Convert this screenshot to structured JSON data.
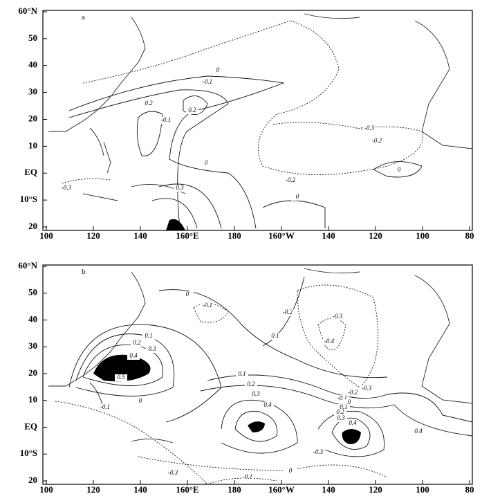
{
  "x_axis_labels": [
    "100",
    "120",
    "140",
    "160°E",
    "180",
    "160°W",
    "140",
    "120",
    "100",
    "80"
  ],
  "y_axis_labels": [
    "60°N",
    "50",
    "40",
    "30",
    "20",
    "10",
    "EQ",
    "10°S",
    "20"
  ],
  "panels": [
    {
      "label": "a",
      "contour_labels": [
        "0",
        "-0.1",
        "0.2",
        "0.2",
        "-0.1",
        "0",
        "-0.3",
        "-0.2",
        "-0.2",
        "0",
        "0",
        "0.3",
        "-0.3"
      ]
    },
    {
      "label": "b",
      "contour_labels": [
        "-0.1",
        "-0.2",
        "0.1",
        "-0.3",
        "-0.4",
        "0.4",
        "0.5",
        "0.3",
        "0.2",
        "0.1",
        "0",
        "-0.1",
        "0.1",
        "0.2",
        "0.3",
        "0.4",
        "-0.3",
        "-0.2",
        "-0.1",
        "0",
        "0.1",
        "0.2",
        "0.3",
        "0.4",
        "0.4",
        "-0.3",
        "-0.3",
        "0",
        "-0.1",
        "0"
      ]
    }
  ]
}
